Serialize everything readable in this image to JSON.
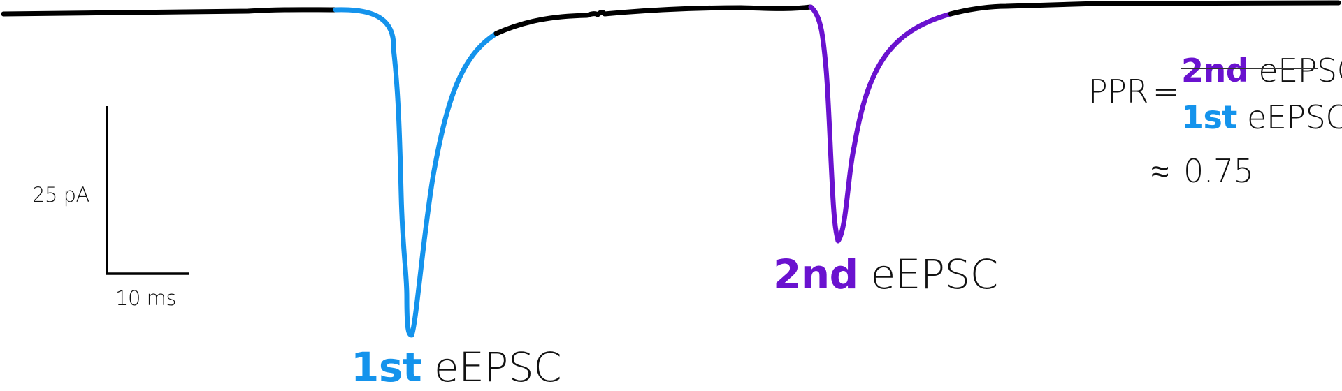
{
  "colors": {
    "baseline": "#000000",
    "first_eepsc": "#1493ec",
    "second_eepsc": "#6a12cf",
    "text": "#111111"
  },
  "scale_bar": {
    "vertical_label": "25 pA",
    "horizontal_label": "10 ms"
  },
  "peaks": {
    "first": {
      "ordinal": "1st",
      "name": "eEPSC"
    },
    "second": {
      "ordinal": "2nd",
      "name": "eEPSC"
    }
  },
  "formula": {
    "lhs": "PPR",
    "equals": "=",
    "numerator": {
      "ordinal": "2nd",
      "name": "eEPSC"
    },
    "denominator": {
      "ordinal": "1st",
      "name": "eEPSC"
    },
    "approx": "≈",
    "value": "0.75"
  }
}
